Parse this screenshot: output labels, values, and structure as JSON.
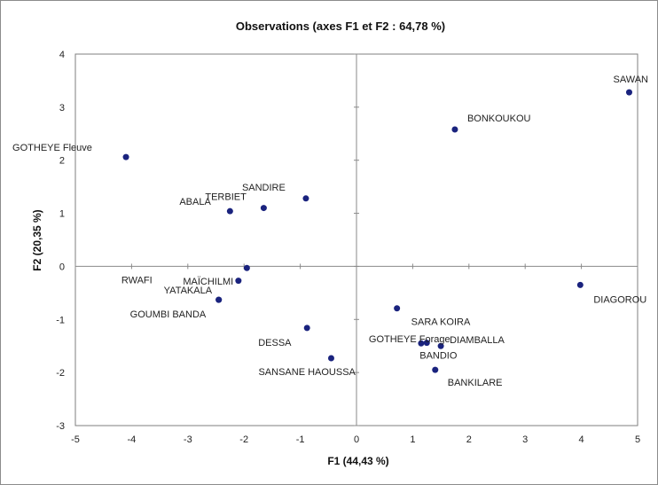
{
  "chart_data": {
    "type": "scatter",
    "title": "Observations (axes F1 et F2 : 64,78 %)",
    "xlabel": "F1 (44,43 %)",
    "ylabel": "F2 (20,35 %)",
    "xlim": [
      -5,
      5
    ],
    "ylim": [
      -3,
      4
    ],
    "xticks": [
      "-5",
      "-4",
      "-3",
      "-2",
      "-1",
      "0",
      "1",
      "2",
      "3",
      "4",
      "5"
    ],
    "yticks": [
      "-3",
      "-2",
      "-1",
      "0",
      "1",
      "2",
      "3",
      "4"
    ],
    "grid": false,
    "point_color": "#1a237e",
    "points": [
      {
        "label": "SAWAN",
        "x": 4.85,
        "y": 3.28
      },
      {
        "label": "BONKOUKOU",
        "x": 1.75,
        "y": 2.58
      },
      {
        "label": "GOTHEYE Fleuve",
        "x": -4.1,
        "y": 2.06
      },
      {
        "label": "SANDIRE",
        "x": -0.9,
        "y": 1.28
      },
      {
        "label": "TERBIET",
        "x": -1.65,
        "y": 1.1
      },
      {
        "label": "ABALA",
        "x": -2.25,
        "y": 1.04
      },
      {
        "label": "MAÏCHILMI",
        "x": -1.95,
        "y": -0.03
      },
      {
        "label": "RWAFI",
        "x": -2.1,
        "y": -0.27
      },
      {
        "label": "YATAKALA",
        "x": -2.45,
        "y": -0.63
      },
      {
        "label": "GOUMBI BANDA",
        "x": -2.45,
        "y": -0.63
      },
      {
        "label": "DIAGOROU",
        "x": 3.98,
        "y": -0.35
      },
      {
        "label": "SARA KOIRA",
        "x": 0.72,
        "y": -0.79
      },
      {
        "label": "DESSA",
        "x": -0.88,
        "y": -1.16
      },
      {
        "label": "GOTHEYE Forage",
        "x": 1.15,
        "y": -1.45
      },
      {
        "label": "DIAMBALLA",
        "x": 1.5,
        "y": -1.5
      },
      {
        "label": "BANDIO",
        "x": 1.25,
        "y": -1.44
      },
      {
        "label": "SANSANE HAOUSSA",
        "x": -0.45,
        "y": -1.73
      },
      {
        "label": "BANKILARE",
        "x": 1.4,
        "y": -1.95
      }
    ]
  }
}
